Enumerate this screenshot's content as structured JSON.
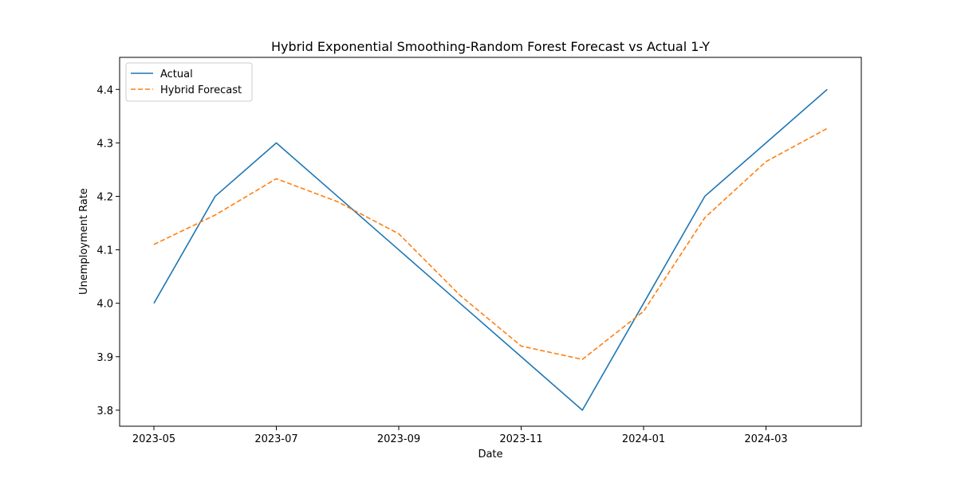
{
  "chart_data": {
    "type": "line",
    "title": "Hybrid Exponential Smoothing-Random Forest Forecast vs Actual 1-Y",
    "xlabel": "Date",
    "ylabel": "Unemployment Rate",
    "x": [
      "2023-05",
      "2023-06",
      "2023-07",
      "2023-08",
      "2023-09",
      "2023-10",
      "2023-11",
      "2023-12",
      "2024-01",
      "2024-02",
      "2024-03",
      "2024-04"
    ],
    "x_ticks": [
      "2023-05",
      "2023-07",
      "2023-09",
      "2023-11",
      "2024-01",
      "2024-03"
    ],
    "y_ticks": [
      3.8,
      3.9,
      4.0,
      4.1,
      4.2,
      4.3,
      4.4
    ],
    "ylim": [
      3.77,
      4.46
    ],
    "series": [
      {
        "name": "Actual",
        "color": "#1f77b4",
        "style": "solid",
        "values": [
          4.0,
          4.2,
          4.3,
          4.2,
          4.1,
          4.0,
          3.9,
          3.8,
          4.0,
          4.2,
          4.3,
          4.4
        ]
      },
      {
        "name": "Hybrid Forecast",
        "color": "#ff7f0e",
        "style": "dashed",
        "values": [
          4.11,
          4.165,
          4.233,
          4.19,
          4.13,
          4.015,
          3.92,
          3.895,
          3.985,
          4.16,
          4.265,
          4.327
        ]
      }
    ],
    "legend": "top-left",
    "grid": false
  }
}
